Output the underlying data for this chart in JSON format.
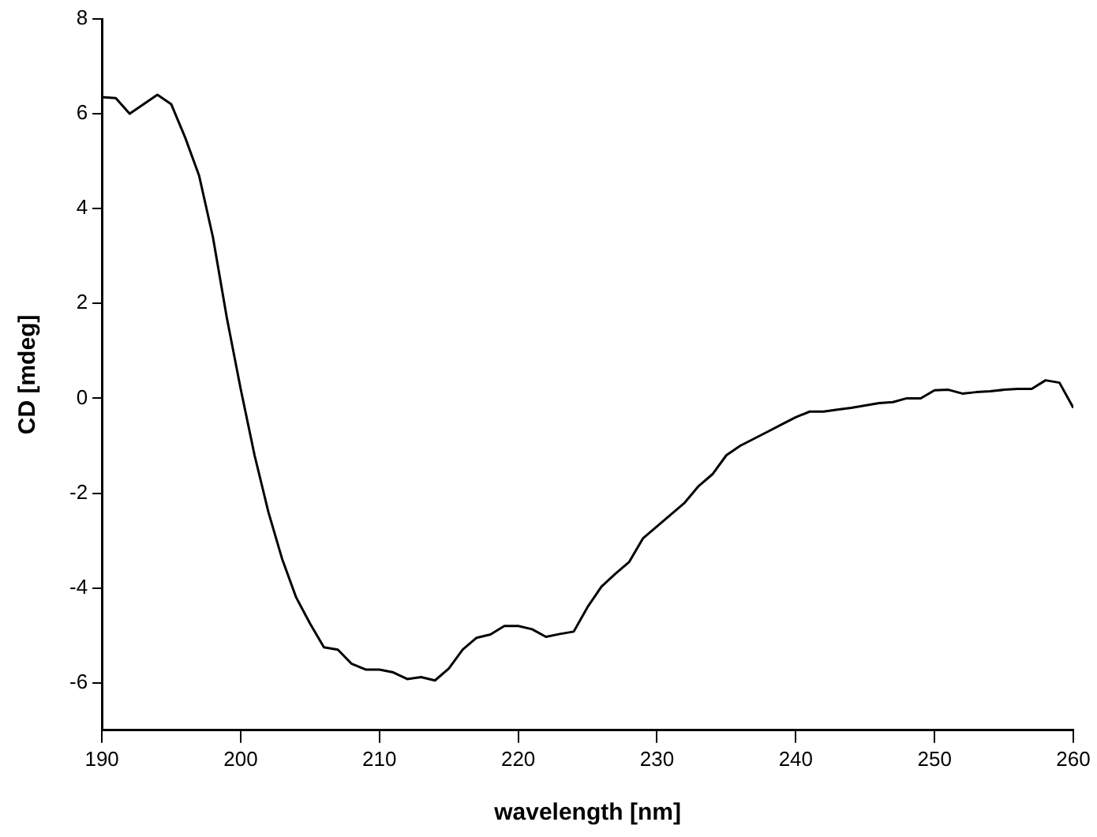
{
  "chart_data": {
    "type": "line",
    "xlabel": "wavelength [nm]",
    "ylabel": "CD [mdeg]",
    "x": [
      190,
      191,
      192,
      193,
      194,
      195,
      196,
      197,
      198,
      199,
      200,
      201,
      202,
      203,
      204,
      205,
      206,
      207,
      208,
      209,
      210,
      211,
      212,
      213,
      214,
      215,
      216,
      217,
      218,
      219,
      220,
      221,
      222,
      223,
      224,
      225,
      226,
      227,
      228,
      229,
      230,
      231,
      232,
      233,
      234,
      235,
      236,
      237,
      238,
      239,
      240,
      241,
      242,
      243,
      244,
      245,
      246,
      247,
      248,
      249,
      250,
      251,
      252,
      253,
      254,
      255,
      256,
      257,
      258,
      259,
      260
    ],
    "series": [
      {
        "color": "#000000",
        "values": [
          6.35,
          6.33,
          6.0,
          6.2,
          6.4,
          6.2,
          5.5,
          4.7,
          3.4,
          1.7,
          0.2,
          -1.2,
          -2.4,
          -3.4,
          -4.2,
          -4.75,
          -5.25,
          -5.3,
          -5.6,
          -5.72,
          -5.72,
          -5.78,
          -5.92,
          -5.88,
          -5.95,
          -5.7,
          -5.3,
          -5.05,
          -4.98,
          -4.8,
          -4.8,
          -4.87,
          -5.03,
          -4.97,
          -4.92,
          -4.4,
          -3.97,
          -3.7,
          -3.45,
          -2.95,
          -2.7,
          -2.45,
          -2.2,
          -1.85,
          -1.6,
          -1.2,
          -1.0,
          -0.85,
          -0.7,
          -0.55,
          -0.4,
          -0.28,
          -0.28,
          -0.24,
          -0.2,
          -0.15,
          -0.1,
          -0.08,
          0.0,
          0.0,
          0.17,
          0.18,
          0.1,
          0.13,
          0.15,
          0.18,
          0.2,
          0.2,
          0.38,
          0.33,
          -0.2
        ]
      }
    ],
    "xlim": [
      190,
      260
    ],
    "xticks": [
      190,
      200,
      210,
      220,
      230,
      240,
      250,
      260
    ],
    "ylim": [
      -7,
      8
    ],
    "yticks": [
      -6,
      -4,
      -2,
      0,
      2,
      4,
      6,
      8
    ],
    "grid": false,
    "legend": false,
    "marker": "none",
    "line_style": "solid"
  }
}
